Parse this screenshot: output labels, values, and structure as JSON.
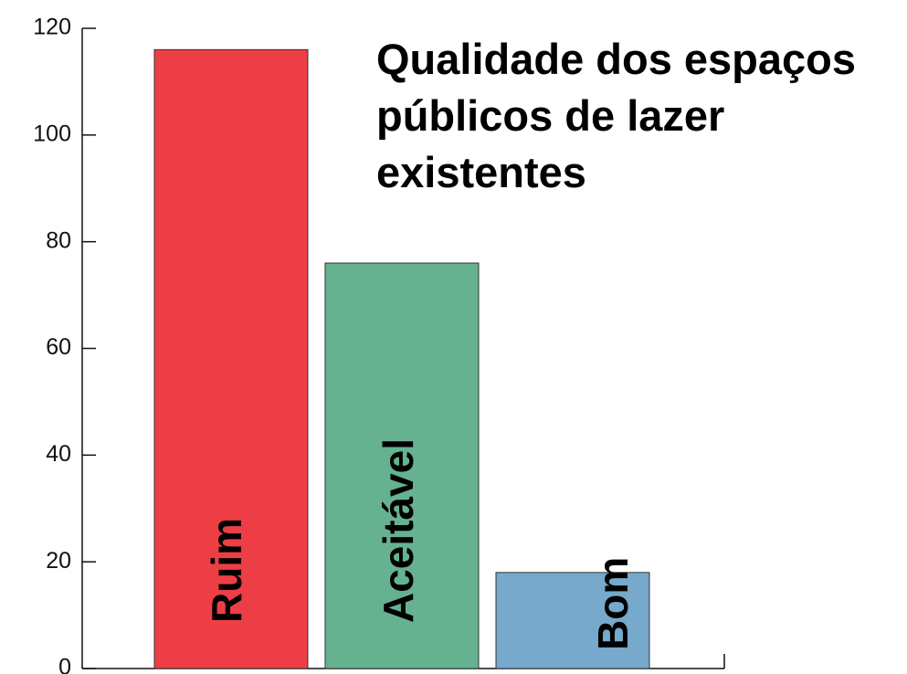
{
  "chart_data": {
    "type": "bar",
    "title": "Qualidade dos espaços públicos de lazer existentes",
    "categories": [
      "Ruim",
      "Aceitável",
      "Bom"
    ],
    "values": [
      116,
      76,
      18
    ],
    "colors": [
      "#ee3e45",
      "#66b290",
      "#76a9cb"
    ],
    "ylim": [
      0,
      120
    ],
    "yticks": [
      0,
      20,
      40,
      60,
      80,
      100,
      120
    ],
    "grid": false
  }
}
